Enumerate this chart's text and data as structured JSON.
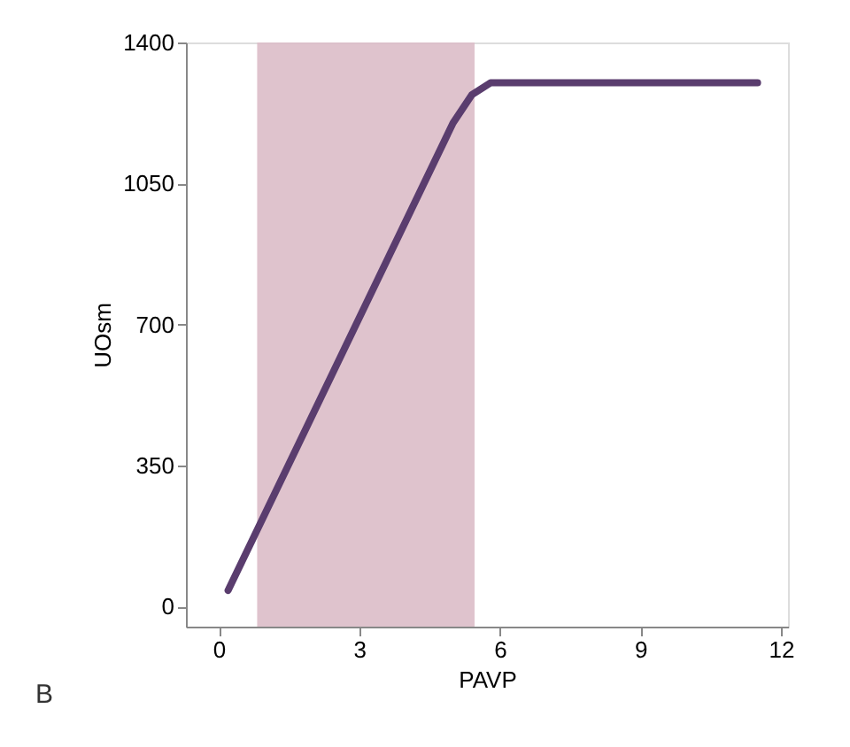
{
  "chart_data": {
    "type": "line",
    "xlabel": "PAVP",
    "ylabel": "UOsm",
    "x": [
      0.2,
      5.0,
      5.4,
      5.8,
      11.5
    ],
    "series": [
      {
        "color": "#5a3d6e",
        "values": [
          40,
          1200,
          1270,
          1300,
          1300
        ]
      }
    ],
    "xlim": [
      -0.7,
      12.15
    ],
    "xticks": [
      0,
      3,
      6,
      9,
      12
    ],
    "ylim": [
      -50,
      1400
    ],
    "yticks": [
      0,
      350,
      700,
      1050,
      1400
    ],
    "bands": [
      {
        "axis": "x",
        "from": 0.82,
        "to": 5.46,
        "color": "#dcbcc8"
      }
    ],
    "annotations": [
      "B"
    ],
    "grid": false,
    "line_style": "solid",
    "marker": "none"
  }
}
